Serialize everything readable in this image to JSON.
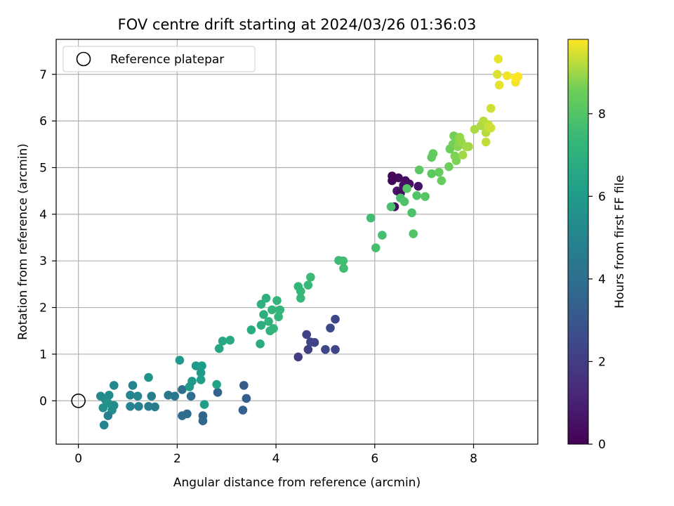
{
  "chart_data": {
    "type": "scatter",
    "title": "FOV centre drift starting at 2024/03/26 01:36:03",
    "xlabel": "Angular distance from reference (arcmin)",
    "ylabel": "Rotation from reference (arcmin)",
    "xlim": [
      -0.45,
      9.3
    ],
    "ylim": [
      -0.93,
      7.75
    ],
    "xticks": [
      0,
      2,
      4,
      6,
      8
    ],
    "yticks": [
      0,
      1,
      2,
      3,
      4,
      5,
      6,
      7
    ],
    "grid": true,
    "legend": {
      "position": "top-left",
      "entries": [
        "Reference platepar"
      ]
    },
    "reference_point": {
      "x": 0,
      "y": 0
    },
    "colorbar": {
      "label": "Hours from first FF file",
      "min": 0,
      "max": 9.8,
      "ticks": [
        0,
        2,
        4,
        6,
        8
      ],
      "colormap": "viridis"
    },
    "points": [
      [
        6.35,
        4.72,
        0.1
      ],
      [
        6.35,
        4.82,
        0.2
      ],
      [
        6.48,
        4.78,
        0.3
      ],
      [
        6.62,
        4.72,
        0.4
      ],
      [
        6.7,
        4.65,
        0.5
      ],
      [
        6.88,
        4.6,
        0.6
      ],
      [
        6.45,
        4.5,
        0.7
      ],
      [
        6.52,
        4.45,
        0.3
      ],
      [
        6.4,
        4.16,
        0.4
      ],
      [
        6.58,
        4.62,
        0.5
      ],
      [
        4.45,
        0.94,
        2.0
      ],
      [
        4.65,
        1.1,
        2.1
      ],
      [
        4.62,
        1.42,
        2.2
      ],
      [
        4.7,
        1.26,
        2.3
      ],
      [
        4.78,
        1.25,
        2.2
      ],
      [
        5.0,
        1.1,
        2.4
      ],
      [
        5.2,
        1.1,
        2.3
      ],
      [
        5.1,
        1.56,
        2.5
      ],
      [
        5.2,
        1.75,
        2.4
      ],
      [
        3.35,
        0.33,
        3.2
      ],
      [
        3.4,
        0.05,
        3.3
      ],
      [
        3.33,
        -0.2,
        3.4
      ],
      [
        2.82,
        0.18,
        3.5
      ],
      [
        2.52,
        -0.32,
        3.6
      ],
      [
        2.52,
        -0.43,
        3.7
      ],
      [
        2.2,
        -0.28,
        3.8
      ],
      [
        2.1,
        -0.32,
        3.9
      ],
      [
        2.28,
        0.1,
        4.0
      ],
      [
        2.1,
        0.24,
        4.1
      ],
      [
        1.95,
        0.1,
        4.3
      ],
      [
        1.82,
        0.12,
        4.4
      ],
      [
        1.55,
        -0.13,
        4.5
      ],
      [
        1.48,
        0.1,
        4.6
      ],
      [
        1.42,
        -0.12,
        4.7
      ],
      [
        1.22,
        -0.12,
        4.8
      ],
      [
        1.05,
        -0.12,
        4.9
      ],
      [
        1.05,
        0.12,
        5.0
      ],
      [
        1.2,
        0.1,
        5.1
      ],
      [
        1.1,
        0.33,
        5.0
      ],
      [
        0.72,
        0.33,
        5.2
      ],
      [
        0.72,
        -0.1,
        5.3
      ],
      [
        0.68,
        -0.2,
        5.4
      ],
      [
        0.6,
        -0.32,
        4.8
      ],
      [
        0.52,
        -0.52,
        5.0
      ],
      [
        0.5,
        -0.15,
        5.5
      ],
      [
        0.45,
        0.1,
        5.2
      ],
      [
        0.62,
        0.12,
        5.3
      ],
      [
        0.55,
        0.02,
        5.4
      ],
      [
        0.6,
        -0.05,
        5.6
      ],
      [
        1.42,
        0.5,
        5.7
      ],
      [
        2.05,
        0.87,
        5.9
      ],
      [
        2.25,
        0.3,
        6.0
      ],
      [
        2.3,
        0.42,
        5.9
      ],
      [
        2.38,
        0.75,
        6.0
      ],
      [
        2.5,
        0.75,
        6.1
      ],
      [
        2.48,
        0.6,
        6.0
      ],
      [
        2.48,
        0.45,
        6.2
      ],
      [
        2.55,
        -0.08,
        6.1
      ],
      [
        2.8,
        0.35,
        6.3
      ],
      [
        2.85,
        1.12,
        6.5
      ],
      [
        2.92,
        1.28,
        6.6
      ],
      [
        3.07,
        1.3,
        6.7
      ],
      [
        3.5,
        1.52,
        6.8
      ],
      [
        3.68,
        1.22,
        6.8
      ],
      [
        3.7,
        1.62,
        6.9
      ],
      [
        3.75,
        1.85,
        6.9
      ],
      [
        3.7,
        2.07,
        7.0
      ],
      [
        3.8,
        2.2,
        7.0
      ],
      [
        3.85,
        1.7,
        7.1
      ],
      [
        3.88,
        1.5,
        7.1
      ],
      [
        3.95,
        1.55,
        7.2
      ],
      [
        3.92,
        1.95,
        7.2
      ],
      [
        4.02,
        2.15,
        7.3
      ],
      [
        4.05,
        1.8,
        7.3
      ],
      [
        4.08,
        1.95,
        7.2
      ],
      [
        4.45,
        2.45,
        7.3
      ],
      [
        4.5,
        2.2,
        7.4
      ],
      [
        4.5,
        2.35,
        7.3
      ],
      [
        4.65,
        2.48,
        7.4
      ],
      [
        4.7,
        2.65,
        7.5
      ],
      [
        5.27,
        3.01,
        7.5
      ],
      [
        5.36,
        3.0,
        7.6
      ],
      [
        5.37,
        2.84,
        7.6
      ],
      [
        5.92,
        3.92,
        7.6
      ],
      [
        6.02,
        3.28,
        7.7
      ],
      [
        6.15,
        3.55,
        7.7
      ],
      [
        6.33,
        4.16,
        7.8
      ],
      [
        6.52,
        4.35,
        7.8
      ],
      [
        6.6,
        4.27,
        7.9
      ],
      [
        6.75,
        4.03,
        7.9
      ],
      [
        6.78,
        3.58,
        8.0
      ],
      [
        6.85,
        4.4,
        8.0
      ],
      [
        7.02,
        4.38,
        8.1
      ],
      [
        6.65,
        4.55,
        8.1
      ],
      [
        6.9,
        4.95,
        8.2
      ],
      [
        7.15,
        4.87,
        8.2
      ],
      [
        7.15,
        5.22,
        8.3
      ],
      [
        7.18,
        5.3,
        8.3
      ],
      [
        7.3,
        4.9,
        8.4
      ],
      [
        7.35,
        4.72,
        8.4
      ],
      [
        7.5,
        5.02,
        8.5
      ],
      [
        7.52,
        5.4,
        8.5
      ],
      [
        7.58,
        5.5,
        8.6
      ],
      [
        7.6,
        5.68,
        8.6
      ],
      [
        7.62,
        5.25,
        8.7
      ],
      [
        7.65,
        5.15,
        8.7
      ],
      [
        7.68,
        5.45,
        8.8
      ],
      [
        7.7,
        5.6,
        8.8
      ],
      [
        7.72,
        5.65,
        8.9
      ],
      [
        7.75,
        5.55,
        8.9
      ],
      [
        7.78,
        5.27,
        9.0
      ],
      [
        7.85,
        5.45,
        9.0
      ],
      [
        7.9,
        5.45,
        9.0
      ],
      [
        8.02,
        5.82,
        9.1
      ],
      [
        8.15,
        5.9,
        9.1
      ],
      [
        8.2,
        6.0,
        9.2
      ],
      [
        8.25,
        5.75,
        9.2
      ],
      [
        8.25,
        5.55,
        9.3
      ],
      [
        8.3,
        5.92,
        9.3
      ],
      [
        8.35,
        5.85,
        9.4
      ],
      [
        8.35,
        6.27,
        9.4
      ],
      [
        8.48,
        7.0,
        9.5
      ],
      [
        8.5,
        7.33,
        9.6
      ],
      [
        8.52,
        6.77,
        9.6
      ],
      [
        8.68,
        6.97,
        9.7
      ],
      [
        8.85,
        6.83,
        9.7
      ],
      [
        8.85,
        6.93,
        9.8
      ],
      [
        8.9,
        6.95,
        9.8
      ]
    ]
  }
}
